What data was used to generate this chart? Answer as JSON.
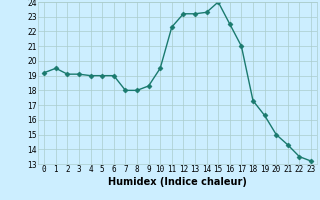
{
  "x": [
    0,
    1,
    2,
    3,
    4,
    5,
    6,
    7,
    8,
    9,
    10,
    11,
    12,
    13,
    14,
    15,
    16,
    17,
    18,
    19,
    20,
    21,
    22,
    23
  ],
  "y": [
    19.2,
    19.5,
    19.1,
    19.1,
    19.0,
    19.0,
    19.0,
    18.0,
    18.0,
    18.3,
    19.5,
    22.3,
    23.2,
    23.2,
    23.3,
    24.0,
    22.5,
    21.0,
    17.3,
    16.3,
    15.0,
    14.3,
    13.5,
    13.2
  ],
  "xlabel": "Humidex (Indice chaleur)",
  "ylim": [
    13,
    24
  ],
  "xlim_min": -0.5,
  "xlim_max": 23.5,
  "yticks": [
    13,
    14,
    15,
    16,
    17,
    18,
    19,
    20,
    21,
    22,
    23,
    24
  ],
  "xticks": [
    0,
    1,
    2,
    3,
    4,
    5,
    6,
    7,
    8,
    9,
    10,
    11,
    12,
    13,
    14,
    15,
    16,
    17,
    18,
    19,
    20,
    21,
    22,
    23
  ],
  "line_color": "#1a7a6e",
  "marker": "D",
  "marker_size": 2.5,
  "bg_color": "#cceeff",
  "grid_color": "#aacccc",
  "xlabel_fontsize": 7,
  "tick_fontsize": 5.5,
  "line_width": 1.0
}
